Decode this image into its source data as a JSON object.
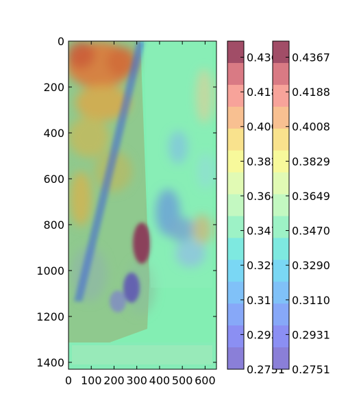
{
  "chart_data": {
    "type": "heatmap",
    "title": "",
    "xlabel": "",
    "ylabel": "",
    "x_ticks": [
      0,
      100,
      200,
      300,
      400,
      500,
      600
    ],
    "y_ticks": [
      0,
      200,
      400,
      600,
      800,
      1000,
      1200,
      1400
    ],
    "xlim": [
      0,
      650
    ],
    "ylim": [
      1430,
      0
    ],
    "colorbars": [
      {
        "name": "",
        "ticks": [
          "0.4367",
          "0.4188",
          "0.4008",
          "0.3829",
          "0.3649",
          "0.3470",
          "0.3290",
          "0.3110",
          "0.2931",
          "0.2751"
        ],
        "levels": [
          "#a14d67",
          "#d97a84",
          "#f7a39a",
          "#f8c091",
          "#f9e28d",
          "#f7f99b",
          "#e1fab4",
          "#c3f8c1",
          "#9df2c6",
          "#7ee9e0",
          "#7ad7f4",
          "#80c1f8",
          "#87a8f8",
          "#8b8ff3",
          "#8a7fd8"
        ]
      },
      {
        "name": "",
        "ticks": [
          "0.4367",
          "0.4188",
          "0.4008",
          "0.3829",
          "0.3649",
          "0.3470",
          "0.3290",
          "0.3110",
          "0.2931",
          "0.2751"
        ],
        "levels": [
          "#a14d67",
          "#d97a84",
          "#f7a39a",
          "#f8c091",
          "#f9e28d",
          "#f7f99b",
          "#e1fab4",
          "#c3f8c1",
          "#9df2c6",
          "#7ee9e0",
          "#7ad7f4",
          "#80c1f8",
          "#87a8f8",
          "#8b8ff3",
          "#8a7fd8"
        ]
      }
    ]
  }
}
